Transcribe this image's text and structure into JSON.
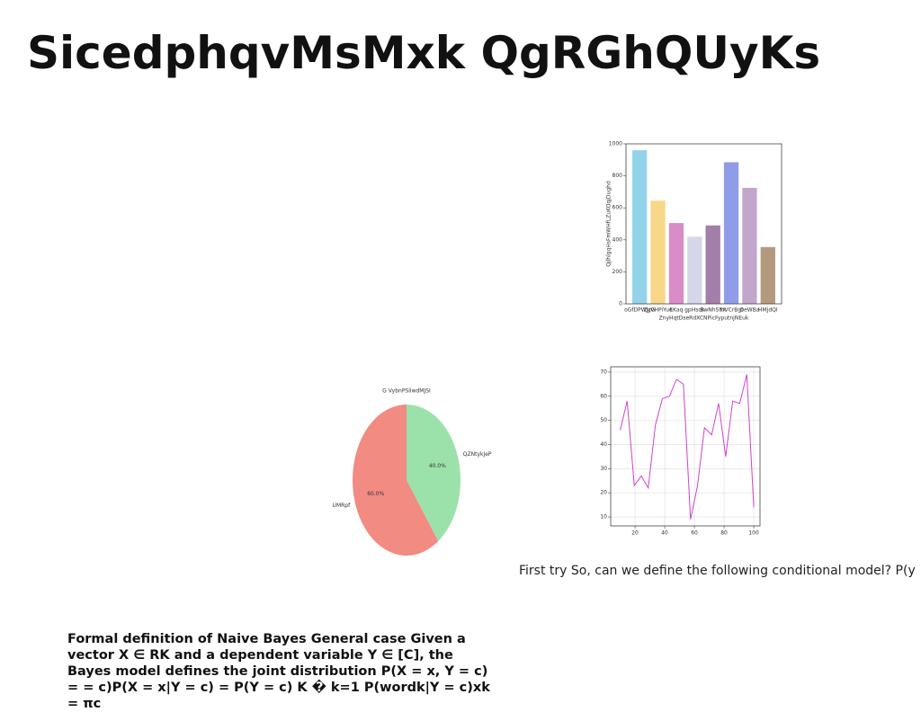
{
  "title": "SicedphqvMsMxk QgRGhQUyKs",
  "text_blocks": [
    "First try So, can we define the following conditional model? P(y",
    "Formal definition of Naive Bayes General case Given a vector X ∈ RK and a dependent variable Y ∈ [C], the Bayes model defines the joint distribution P(X = x, Y = c) = = c)P(X = x|Y = c) = P(Y = c) K � k=1 P(wordk|Y = c)xk = πc"
  ],
  "chart_data": [
    {
      "type": "bar",
      "x_label": "ZnyHqtDseRdXCNPicFyputnjNEuk",
      "y_label": "QjlhlgqHsFmWHfLZuKOqjDughd",
      "categories": [
        "oGfDPWJzG",
        "ZgVHPiYuo",
        "EKaq",
        "gpHsok",
        "BwNhSTX",
        "mVCrBgt",
        "OeWBa",
        "HMjdQI"
      ],
      "values": [
        960,
        645,
        505,
        420,
        490,
        885,
        725,
        355
      ],
      "colors": [
        "#93d3ea",
        "#f7d888",
        "#d98cc6",
        "#d5d6e8",
        "#a17fa8",
        "#8f9ce8",
        "#c3a6cb",
        "#b39a7e"
      ],
      "ylim": [
        0,
        1000
      ],
      "yticks": [
        0,
        200,
        400,
        600,
        800,
        1000
      ]
    },
    {
      "type": "pie",
      "title": "G VybnPSilwdMJSI",
      "categories": [
        "QZNtykJeP",
        "UMRpf"
      ],
      "values": [
        40,
        60
      ],
      "value_labels": [
        "40.0%",
        "60.0%"
      ],
      "colors": [
        "#9be2aa",
        "#f28b82"
      ]
    },
    {
      "type": "line",
      "x": [
        10,
        14.7,
        19.5,
        24.2,
        28.9,
        33.7,
        38.4,
        43.2,
        47.9,
        52.6,
        57.4,
        62.1,
        66.8,
        71.6,
        76.3,
        81.1,
        85.8,
        90.5,
        95.3,
        100
      ],
      "values": [
        46,
        58,
        23,
        27,
        22,
        48,
        59,
        60,
        67,
        65,
        9,
        23,
        47,
        44,
        57,
        35,
        58,
        57,
        69,
        14
      ],
      "color": "#cc44cc",
      "grid": true,
      "xlim": [
        3.6,
        104.2
      ],
      "xticks": [
        20,
        40,
        60,
        80,
        100
      ],
      "ylim": [
        6.3,
        72.2
      ],
      "yticks": [
        10,
        20,
        30,
        40,
        50,
        60,
        70
      ]
    }
  ]
}
